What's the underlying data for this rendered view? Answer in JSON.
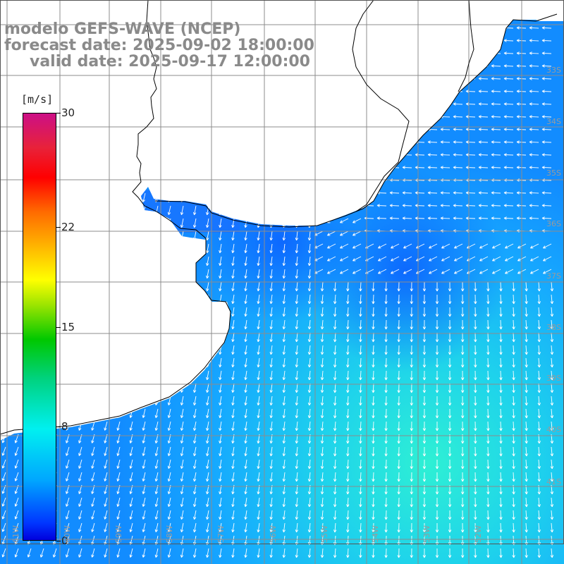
{
  "title": {
    "line1": "modelo GEFS-WAVE (NCEP)",
    "line2": "forecast date: 2025-09-02 18:00:00",
    "line3": "valid date: 2025-09-17 12:00:00"
  },
  "legend": {
    "unit": "[m/s]",
    "ticks": [
      {
        "label": "30",
        "value": 30
      },
      {
        "label": "22",
        "value": 22
      },
      {
        "label": "15",
        "value": 15
      },
      {
        "label": "8",
        "value": 8
      },
      {
        "label": "0",
        "value": 0
      }
    ],
    "range": [
      0,
      30
    ]
  },
  "colors": {
    "land": "#ffffff",
    "grid": "#8c8c8c",
    "coast": "#000000",
    "arrow": "#ffffff",
    "low_wind": "#0a5cff",
    "mid_wind": "#1ea8ff",
    "high_wind": "#22f0dc"
  },
  "lat_labels": [
    "33S",
    "34S",
    "35S",
    "36S",
    "37S",
    "38S",
    "39S",
    "40S",
    "41S"
  ],
  "lon_labels": [
    "61W",
    "60W",
    "59W",
    "58W",
    "57W",
    "56W",
    "55W",
    "54W",
    "53W",
    "52W"
  ],
  "field": {
    "variable": "wind speed and direction",
    "predominant_direction": "toward south-southwest / west",
    "speed_range_m_s": [
      5,
      10
    ]
  }
}
